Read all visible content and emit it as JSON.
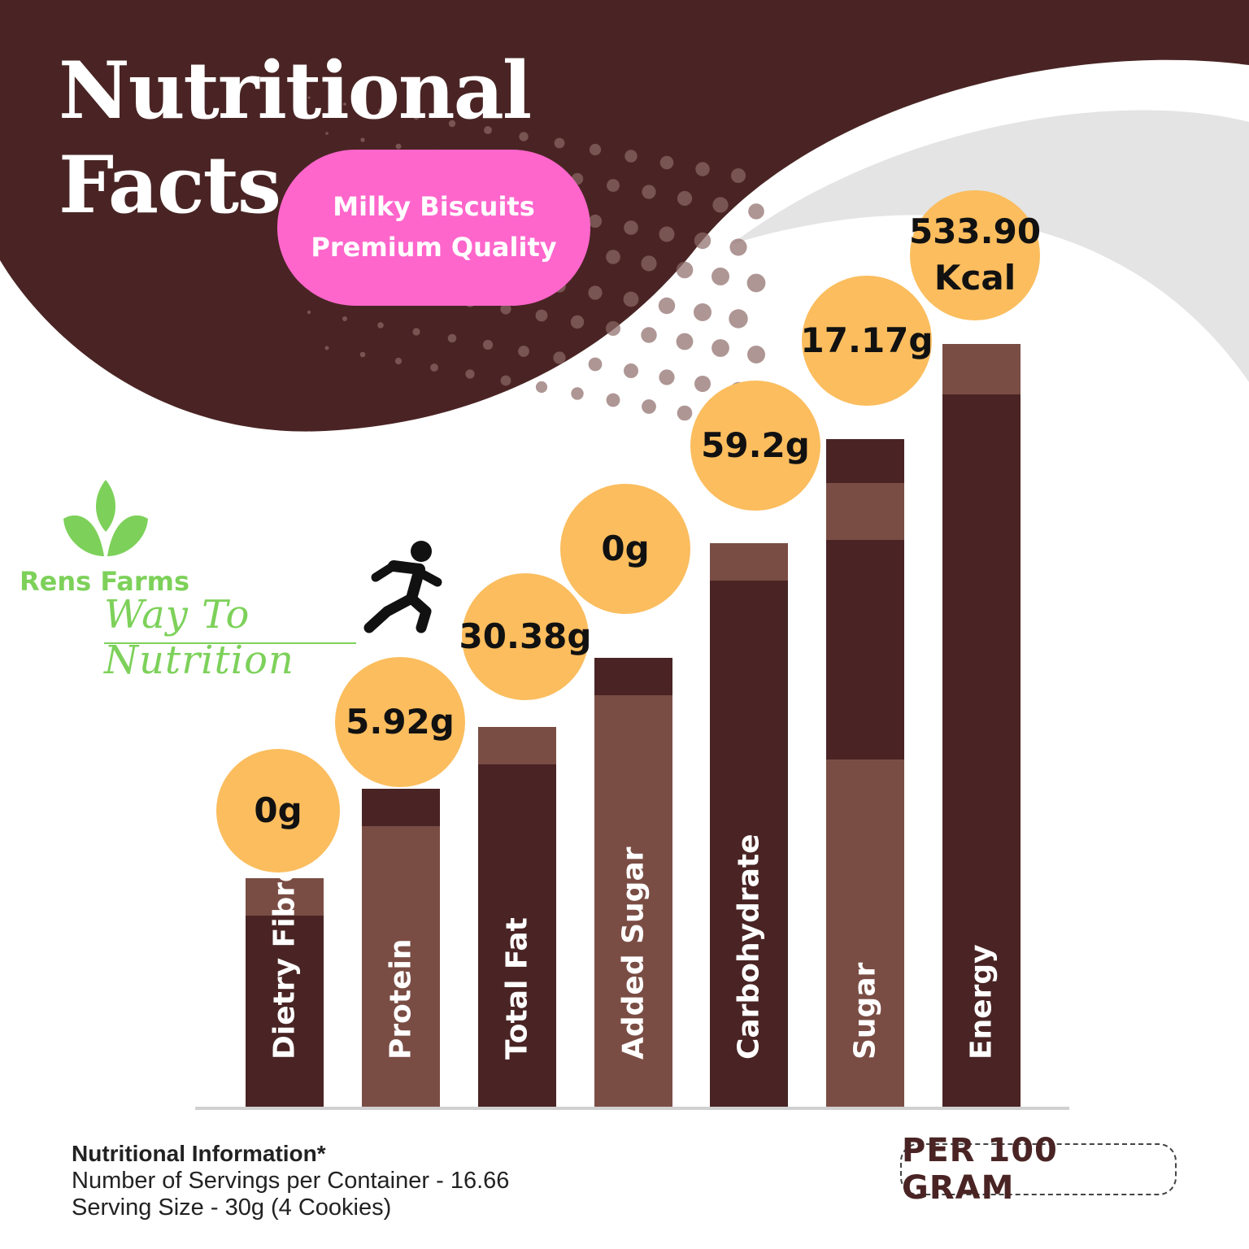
{
  "header": {
    "title_line1": "Nutritional",
    "title_line2": "Facts",
    "product_line1": "Milky Biscuits",
    "product_line2": "Premium Quality"
  },
  "brand": {
    "name": "Rens Farms",
    "tagline": "Way To Nutrition"
  },
  "colors": {
    "dark_brown": "#4a2424",
    "light_brown": "#7a4d44",
    "badge_pink": "#ff66cc",
    "bubble_orange": "#fbbd5e",
    "brand_green": "#7dd15a"
  },
  "chart_data": {
    "type": "bar",
    "categories": [
      "Dietry Fibre",
      "Protein",
      "Total Fat",
      "Added Sugar",
      "Carbohydrate",
      "Sugar",
      "Energy"
    ],
    "value_labels": [
      "0g",
      "5.92g",
      "30.38g",
      "0g",
      "59.2g",
      "17.17g",
      "533.90 Kcal"
    ],
    "values": [
      0,
      5.92,
      30.38,
      0,
      59.2,
      17.17,
      533.9
    ],
    "units": [
      "g",
      "g",
      "g",
      "g",
      "g",
      "g",
      "Kcal"
    ],
    "note": "PER 100 GRAM"
  },
  "footer": {
    "info_heading": "Nutritional Information*",
    "servings": "Number of Servings per Container - 16.66",
    "serving_size": "Serving Size - 30g  (4 Cookies)",
    "per_unit": "PER 100 GRAM"
  }
}
